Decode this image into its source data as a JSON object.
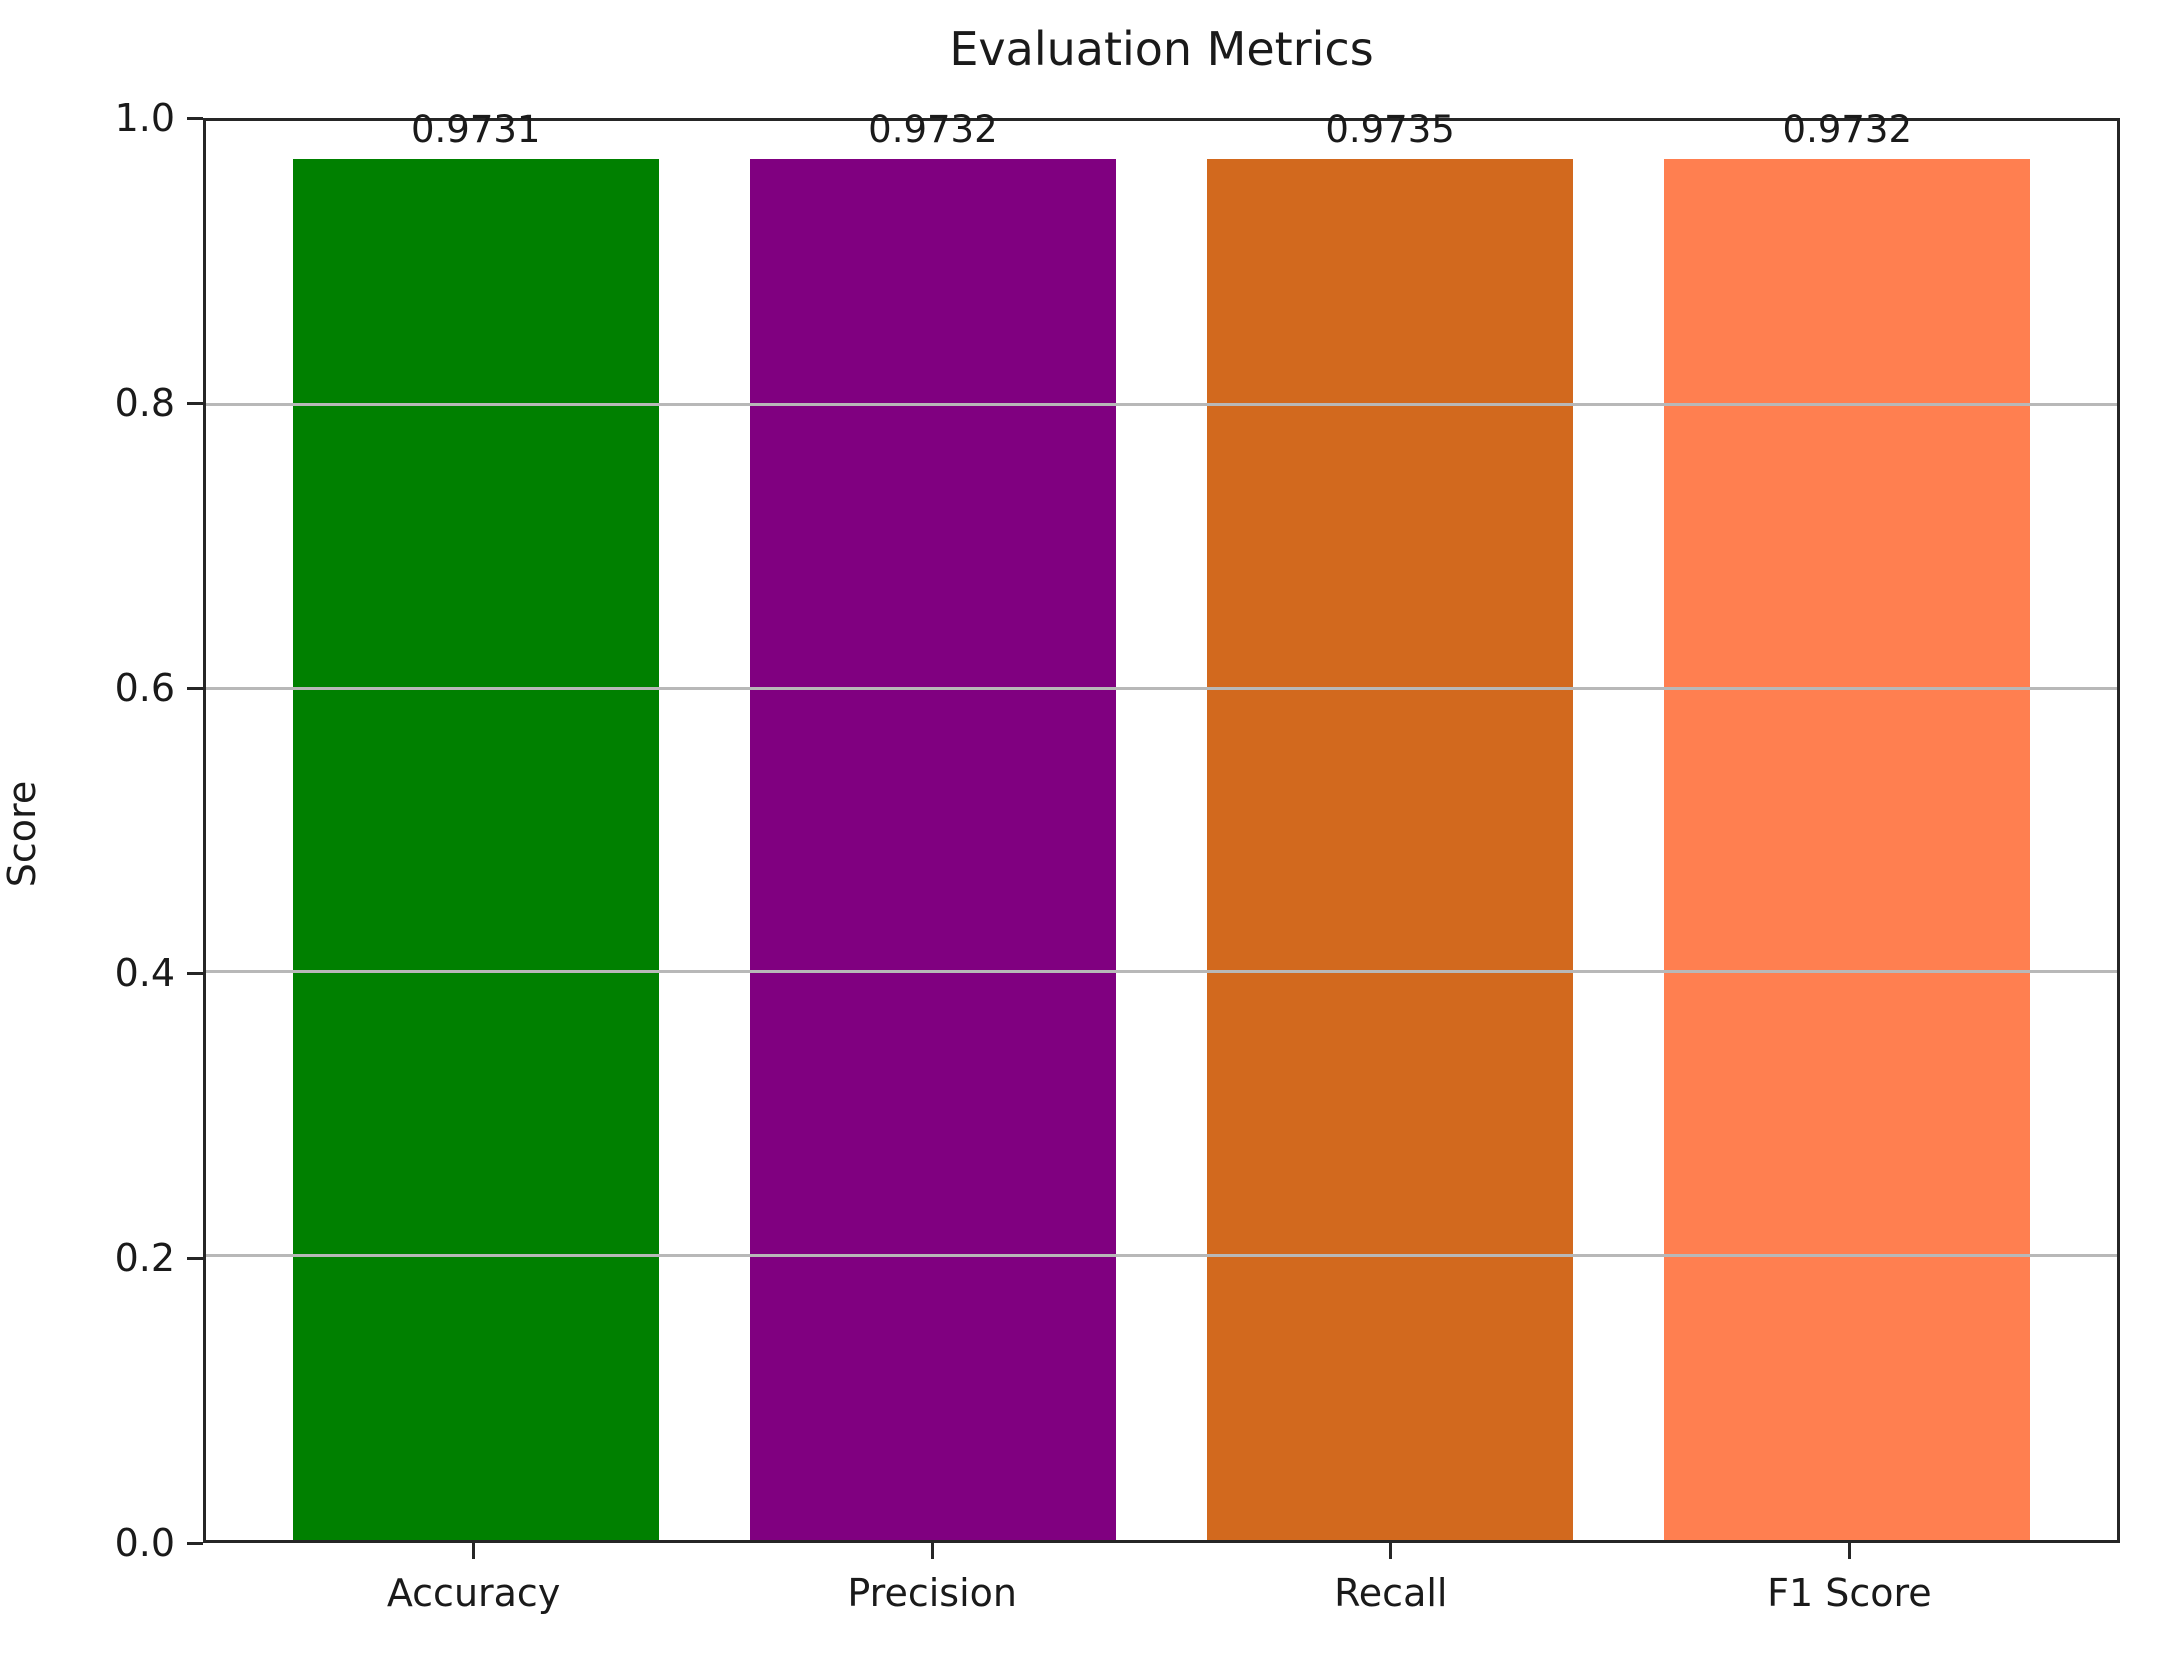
{
  "chart_data": {
    "type": "bar",
    "title": "Evaluation Metrics",
    "xlabel": "",
    "ylabel": "Score",
    "categories": [
      "Accuracy",
      "Precision",
      "Recall",
      "F1 Score"
    ],
    "values": [
      0.9731,
      0.9732,
      0.9735,
      0.9732
    ],
    "value_labels": [
      "0.9731",
      "0.9732",
      "0.9735",
      "0.9732"
    ],
    "bar_colors": [
      "#008000",
      "#800080",
      "#d2691e",
      "#ff7f50"
    ],
    "ylim": [
      0.0,
      1.0
    ],
    "yticks": [
      0.0,
      0.2,
      0.4,
      0.6,
      0.8,
      1.0
    ],
    "ytick_labels": [
      "0.0",
      "0.2",
      "0.4",
      "0.6",
      "0.8",
      "1.0"
    ],
    "grid": "horizontal",
    "grid_color": "#b8b8b8",
    "grid_above_bars": true,
    "legend_position": "none",
    "bar_width_fraction": 0.8,
    "axis_color": "#262626",
    "text_color": "#1a1a1a"
  }
}
